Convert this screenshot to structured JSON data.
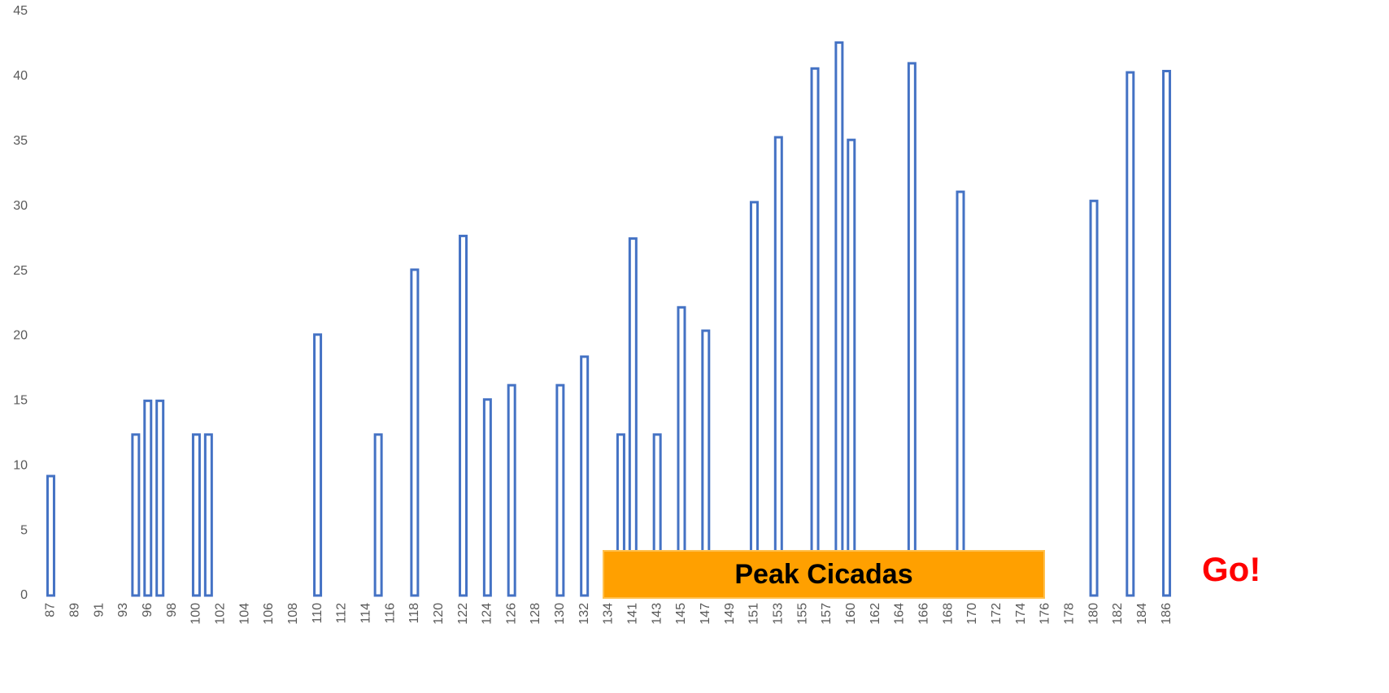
{
  "chart_data": {
    "type": "bar",
    "categories": [
      "87",
      null,
      "89",
      null,
      "91",
      null,
      "93",
      null,
      "96",
      null,
      "98",
      null,
      "100",
      null,
      "102",
      null,
      "104",
      null,
      "106",
      null,
      "108",
      null,
      "110",
      null,
      "112",
      null,
      "114",
      null,
      "116",
      null,
      "118",
      null,
      "120",
      null,
      "122",
      null,
      "124",
      null,
      "126",
      null,
      "128",
      null,
      "130",
      null,
      "132",
      null,
      "134",
      null,
      "141",
      null,
      "143",
      null,
      "145",
      null,
      "147",
      null,
      "149",
      null,
      "151",
      null,
      "153",
      null,
      "155",
      null,
      "157",
      null,
      "160",
      null,
      "162",
      null,
      "164",
      null,
      "166",
      null,
      "168",
      null,
      "170",
      null,
      "172",
      null,
      "174",
      null,
      "176",
      null,
      "178",
      null,
      "180",
      null,
      "182",
      null,
      "184",
      null,
      "186"
    ],
    "values": [
      9.2,
      null,
      null,
      null,
      null,
      null,
      null,
      12.4,
      15,
      15,
      null,
      null,
      12.4,
      12.4,
      null,
      null,
      null,
      null,
      null,
      null,
      null,
      null,
      20.1,
      null,
      null,
      null,
      null,
      12.4,
      null,
      null,
      25.1,
      null,
      null,
      null,
      27.7,
      null,
      15.1,
      null,
      16.2,
      null,
      null,
      null,
      16.2,
      null,
      18.4,
      null,
      null,
      12.4,
      27.5,
      null,
      12.4,
      null,
      22.2,
      null,
      20.4,
      null,
      null,
      null,
      30.3,
      null,
      35.3,
      null,
      null,
      40.6,
      null,
      42.6,
      35.1,
      null,
      null,
      null,
      null,
      41,
      null,
      null,
      null,
      31.1,
      null,
      null,
      null,
      null,
      null,
      null,
      null,
      null,
      null,
      null,
      30.4,
      null,
      null,
      40.3,
      null,
      null,
      40.4
    ],
    "color": "#4472c4",
    "ylim": [
      0,
      45
    ],
    "yticks": [
      0,
      5,
      10,
      15,
      20,
      25,
      30,
      35,
      40,
      45
    ],
    "grid": false,
    "annotations": [
      {
        "text": "Peak Cicadas"
      },
      {
        "text": "Go!"
      }
    ]
  }
}
